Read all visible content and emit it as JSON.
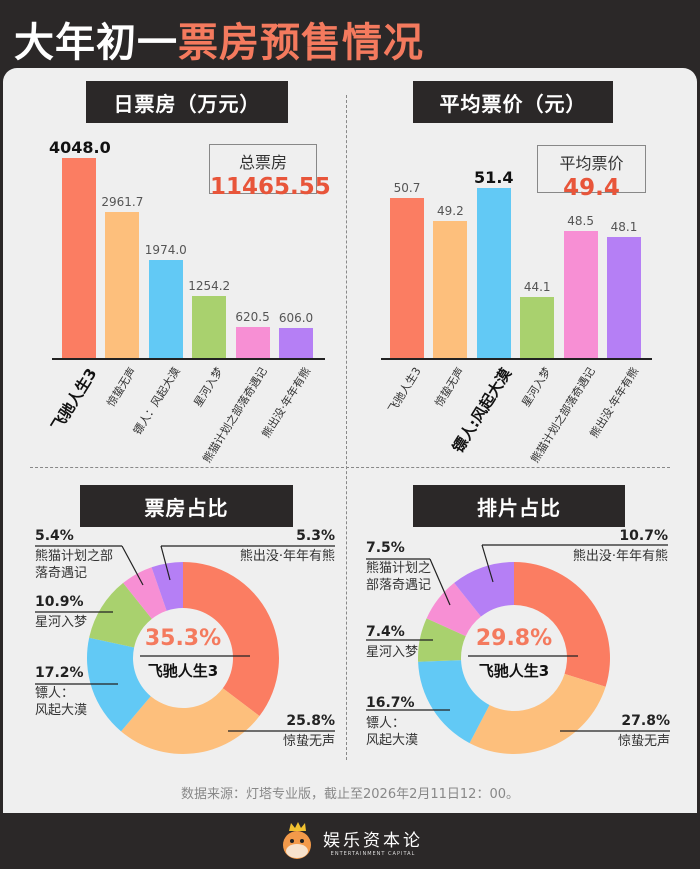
{
  "title": {
    "part1": "大年初一",
    "part2": "票房预售情况"
  },
  "colors": {
    "accent": "#f47a5e",
    "dark": "#2b2828",
    "panel": "#efefef"
  },
  "daily_box_office": {
    "header": "日票房（万元）",
    "summary_label": "总票房",
    "summary_value": "11465.55"
  },
  "avg_price": {
    "header": "平均票价（元）",
    "summary_label": "平均票价",
    "summary_value": "49.4"
  },
  "box_share": {
    "header": "票房占比"
  },
  "screening_share": {
    "header": "排片占比"
  },
  "chart_data": [
    {
      "type": "bar",
      "title": "日票房（万元）",
      "categories": [
        "飞驰人生3",
        "惊蛰无声",
        "镖人：风起大漠",
        "星河入梦",
        "熊猫计划之部落奇遇记",
        "熊出没·年年有熊"
      ],
      "values": [
        4048.0,
        2961.7,
        1974.0,
        1254.2,
        620.5,
        606.0
      ],
      "value_labels": [
        "4048.0",
        "2961.7",
        "1974.0",
        "1254.2",
        "620.5",
        "606.0"
      ],
      "highlight_index": 0,
      "colors": [
        "#fb7d62",
        "#fdbf7c",
        "#62c9f5",
        "#a9d16e",
        "#f78fd4",
        "#b57ff5"
      ],
      "ylim": [
        0,
        4048
      ],
      "grid": false
    },
    {
      "type": "bar",
      "title": "平均票价（元）",
      "categories": [
        "飞驰人生3",
        "惊蛰无声",
        "镖人:风起大漠",
        "星河入梦",
        "熊猫计划之部落奇遇记",
        "熊出没·年年有熊"
      ],
      "values": [
        50.7,
        49.2,
        51.4,
        44.1,
        48.5,
        48.1
      ],
      "value_labels": [
        "50.7",
        "49.2",
        "51.4",
        "44.1",
        "48.5",
        "48.1"
      ],
      "highlight_index": 2,
      "colors": [
        "#fb7d62",
        "#fdbf7c",
        "#62c9f5",
        "#a9d16e",
        "#f78fd4",
        "#b57ff5"
      ],
      "ylim": [
        40,
        51.4
      ],
      "grid": false
    },
    {
      "type": "pie",
      "title": "票房占比",
      "donut": true,
      "categories": [
        "飞驰人生3",
        "惊蛰无声",
        "镖人：风起大漠",
        "星河入梦",
        "熊猫计划之部落奇遇记",
        "熊出没·年年有熊"
      ],
      "values": [
        35.3,
        25.8,
        17.2,
        10.9,
        5.4,
        5.3
      ],
      "labels": [
        "35.3%",
        "25.8%",
        "17.2%",
        "10.9%",
        "5.4%",
        "5.3%"
      ],
      "label_names": [
        "飞驰人生3",
        "惊蛰无声",
        "镖人：\n风起大漠",
        "星河入梦",
        "熊猫计划之部\n落奇遇记",
        "熊出没·年年有熊"
      ],
      "colors": [
        "#fb7d62",
        "#fdbf7c",
        "#62c9f5",
        "#a9d16e",
        "#f78fd4",
        "#b57ff5"
      ]
    },
    {
      "type": "pie",
      "title": "排片占比",
      "donut": true,
      "categories": [
        "飞驰人生3",
        "惊蛰无声",
        "镖人：风起大漠",
        "星河入梦",
        "熊猫计划之部落奇遇记",
        "熊出没·年年有熊"
      ],
      "values": [
        29.8,
        27.8,
        16.7,
        7.4,
        7.5,
        10.7
      ],
      "labels": [
        "29.8%",
        "27.8%",
        "16.7%",
        "7.4%",
        "7.5%",
        "10.7%"
      ],
      "label_names": [
        "飞驰人生3",
        "惊蛰无声",
        "镖人：\n风起大漠",
        "星河入梦",
        "熊猫计划之\n部落奇遇记",
        "熊出没·年年有熊"
      ],
      "colors": [
        "#fb7d62",
        "#fdbf7c",
        "#62c9f5",
        "#a9d16e",
        "#f78fd4",
        "#b57ff5"
      ]
    }
  ],
  "source": "数据来源：灯塔专业版，截止至2026年2月11日12：00。",
  "footer": {
    "logo_text": "娱乐资本论",
    "logo_sub": "ENTERTAINMENT CAPITAL"
  }
}
